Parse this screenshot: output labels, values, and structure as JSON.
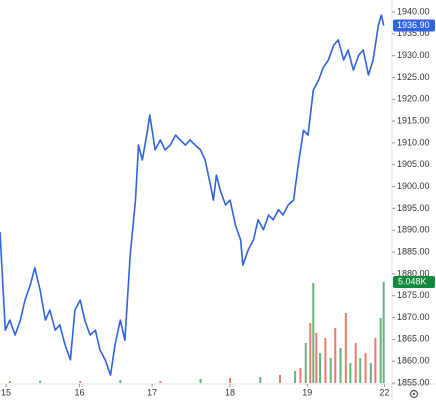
{
  "chart_data": {
    "type": "line",
    "color": "#2f63e0",
    "grid": false,
    "xlim": [
      -0.08,
      5.1
    ],
    "xticks": [
      {
        "value": 0,
        "label": "15"
      },
      {
        "value": 0.97,
        "label": "16"
      },
      {
        "value": 1.93,
        "label": "17"
      },
      {
        "value": 2.96,
        "label": "18"
      },
      {
        "value": 3.98,
        "label": "19"
      },
      {
        "value": 5.0,
        "label": "22"
      }
    ],
    "ylim": [
      1855,
      1942.75
    ],
    "yticks": [
      {
        "value": 1940,
        "label": "1940.00"
      },
      {
        "value": 1935,
        "label": "1935.00"
      },
      {
        "value": 1930,
        "label": "1930.00"
      },
      {
        "value": 1925,
        "label": "1925.00"
      },
      {
        "value": 1920,
        "label": "1920.00"
      },
      {
        "value": 1915,
        "label": "1915.00"
      },
      {
        "value": 1910,
        "label": "1910.00"
      },
      {
        "value": 1905,
        "label": "1905.00"
      },
      {
        "value": 1900,
        "label": "1900.00"
      },
      {
        "value": 1895,
        "label": "1895.00"
      },
      {
        "value": 1890,
        "label": "1890.00"
      },
      {
        "value": 1885,
        "label": "1885.00"
      },
      {
        "value": 1880,
        "label": "1880.00"
      },
      {
        "value": 1875,
        "label": "1875.00"
      },
      {
        "value": 1870,
        "label": "1870.00"
      },
      {
        "value": 1865,
        "label": "1865.00"
      },
      {
        "value": 1860,
        "label": "1860.00"
      },
      {
        "value": 1855,
        "label": "1855.00"
      }
    ],
    "series": [
      {
        "x": [
          -0.08,
          -0.01,
          0.05,
          0.12,
          0.19,
          0.25,
          0.32,
          0.38,
          0.45,
          0.52,
          0.58,
          0.65,
          0.71,
          0.78,
          0.85,
          0.91,
          0.98,
          1.04,
          1.11,
          1.18,
          1.24,
          1.31,
          1.38,
          1.44,
          1.51,
          1.57,
          1.64,
          1.71,
          1.75,
          1.8,
          1.87,
          1.9,
          1.97,
          2.04,
          2.1,
          2.17,
          2.24,
          2.3,
          2.37,
          2.43,
          2.5,
          2.57,
          2.63,
          2.7,
          2.74,
          2.78,
          2.83,
          2.9,
          2.96,
          3.03,
          3.1,
          3.13,
          3.2,
          3.27,
          3.33,
          3.4,
          3.47,
          3.53,
          3.6,
          3.66,
          3.73,
          3.8,
          3.86,
          3.93,
          3.99,
          4.06,
          4.13,
          4.19,
          4.26,
          4.33,
          4.39,
          4.46,
          4.52,
          4.59,
          4.66,
          4.72,
          4.79,
          4.85,
          4.92,
          4.96,
          4.99
        ],
        "values": [
          1889.6,
          1867.1,
          1869.4,
          1866.0,
          1869.4,
          1874.0,
          1877.5,
          1881.4,
          1876.3,
          1869.4,
          1871.7,
          1867.1,
          1868.3,
          1863.7,
          1860.3,
          1871.7,
          1874.0,
          1869.4,
          1866.0,
          1867.1,
          1862.6,
          1860.3,
          1856.8,
          1863.7,
          1869.4,
          1864.8,
          1884.3,
          1896.9,
          1909.5,
          1906.1,
          1913.0,
          1916.4,
          1908.4,
          1910.7,
          1908.4,
          1909.5,
          1911.8,
          1910.7,
          1909.5,
          1910.7,
          1909.5,
          1908.4,
          1906.1,
          1900.4,
          1896.9,
          1902.6,
          1899.2,
          1895.8,
          1896.9,
          1891.2,
          1887.8,
          1882.0,
          1885.5,
          1887.8,
          1892.4,
          1890.1,
          1893.5,
          1892.4,
          1894.7,
          1893.5,
          1895.8,
          1896.9,
          1904.9,
          1912.9,
          1911.8,
          1922.1,
          1924.4,
          1927.2,
          1929.0,
          1932.4,
          1933.6,
          1929.0,
          1931.3,
          1926.7,
          1930.1,
          1931.3,
          1925.6,
          1929.0,
          1937.0,
          1939.3,
          1936.9
        ]
      }
    ],
    "price_tag": {
      "value": 1936.9,
      "label": "1936.90"
    },
    "volume": {
      "vlim": [
        0,
        5.5
      ],
      "x": [
        0.05,
        0.45,
        0.98,
        1.51,
        2.04,
        2.57,
        2.96,
        3.36,
        3.62,
        3.82,
        3.89,
        3.96,
        4.02,
        4.06,
        4.1,
        4.15,
        4.22,
        4.29,
        4.35,
        4.42,
        4.49,
        4.55,
        4.62,
        4.68,
        4.75,
        4.82,
        4.88,
        4.95,
        4.99
      ],
      "values": [
        0.1,
        0.12,
        0.1,
        0.15,
        0.1,
        0.2,
        0.25,
        0.3,
        0.4,
        0.6,
        0.75,
        2.0,
        3.0,
        5.0,
        2.5,
        1.5,
        2.25,
        1.25,
        2.75,
        1.75,
        3.5,
        1.0,
        2.0,
        1.25,
        1.5,
        1.0,
        2.25,
        3.25,
        5.048
      ],
      "colors": [
        "#e05a4a",
        "#3aa35a",
        "#e05a4a",
        "#3aa35a",
        "#e05a4a",
        "#3aa35a",
        "#e05a4a",
        "#3aa35a",
        "#e05a4a",
        "#3aa35a",
        "#e05a4a",
        "#3aa35a",
        "#e05a4a",
        "#3aa35a",
        "#e05a4a",
        "#3aa35a",
        "#e05a4a",
        "#3aa35a",
        "#e05a4a",
        "#3aa35a",
        "#e05a4a",
        "#3aa35a",
        "#e05a4a",
        "#3aa35a",
        "#e05a4a",
        "#3aa35a",
        "#e05a4a",
        "#3aa35a",
        "#3aa35a"
      ],
      "tag": {
        "value": 5.048,
        "label": "5.048K"
      }
    }
  }
}
